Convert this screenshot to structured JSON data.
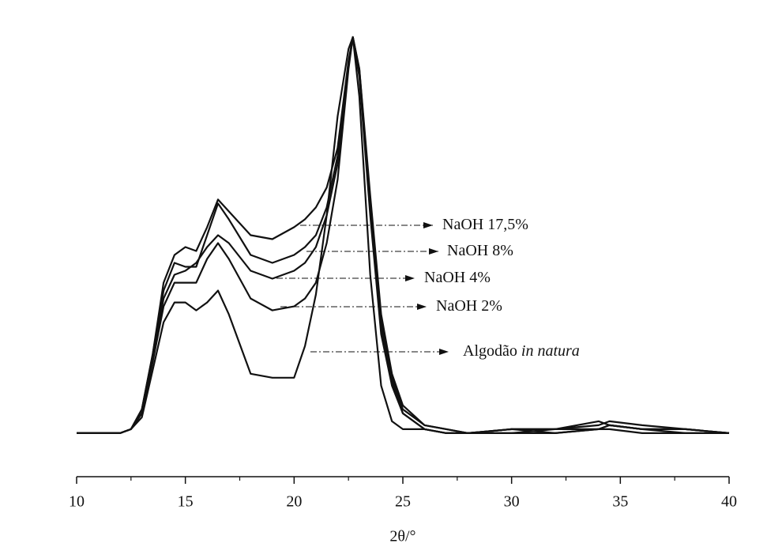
{
  "chart_data": {
    "type": "line",
    "x_label": "2θ/°",
    "x": [
      10,
      12,
      12.5,
      13,
      13.5,
      14,
      14.5,
      15,
      15.5,
      16,
      16.5,
      17,
      18,
      19,
      20,
      20.5,
      21,
      21.5,
      22,
      22.5,
      22.7,
      23,
      23.5,
      24,
      24.5,
      25,
      26,
      27,
      28,
      30,
      32,
      34,
      34.5,
      36,
      38,
      40
    ],
    "series": [
      {
        "name": "NaOH 17,5%",
        "color": "#111111",
        "values": [
          0,
          0,
          1,
          6,
          20,
          38,
          45,
          47,
          46,
          52,
          59,
          56,
          50,
          49,
          52,
          54,
          57,
          62,
          72,
          94,
          100,
          92,
          60,
          30,
          15,
          7,
          2,
          1,
          0,
          1,
          1,
          2,
          3,
          2,
          1,
          0
        ]
      },
      {
        "name": "NaOH 8%",
        "color": "#111111",
        "values": [
          0,
          0,
          1,
          6,
          20,
          36,
          43,
          42,
          42,
          50,
          58,
          54,
          45,
          43,
          45,
          47,
          50,
          57,
          70,
          93,
          100,
          92,
          58,
          28,
          14,
          6,
          2,
          1,
          0,
          1,
          1,
          3,
          2,
          1,
          0,
          0
        ]
      },
      {
        "name": "NaOH 4%",
        "color": "#111111",
        "values": [
          0,
          0,
          1,
          5,
          19,
          34,
          40,
          41,
          43,
          47,
          50,
          48,
          41,
          39,
          41,
          43,
          47,
          55,
          68,
          93,
          100,
          91,
          56,
          27,
          13,
          5,
          1,
          0,
          0,
          1,
          0,
          1,
          2,
          1,
          1,
          0
        ]
      },
      {
        "name": "NaOH 2%",
        "color": "#111111",
        "values": [
          0,
          0,
          1,
          5,
          18,
          32,
          38,
          38,
          38,
          44,
          48,
          44,
          34,
          31,
          32,
          34,
          38,
          48,
          64,
          92,
          100,
          90,
          55,
          25,
          12,
          5,
          1,
          0,
          0,
          0,
          0,
          1,
          2,
          1,
          1,
          0
        ]
      },
      {
        "name": "Algodão",
        "name_italic": "in natura",
        "color": "#111111",
        "values": [
          0,
          0,
          1,
          4,
          16,
          28,
          33,
          33,
          31,
          33,
          36,
          30,
          15,
          14,
          14,
          22,
          35,
          55,
          80,
          97,
          100,
          85,
          40,
          12,
          3,
          1,
          1,
          0,
          0,
          0,
          1,
          1,
          1,
          0,
          0,
          0
        ]
      }
    ],
    "xlim": [
      10,
      40
    ],
    "xticks": [
      10,
      15,
      20,
      25,
      30,
      35,
      40
    ],
    "xminorticks": [
      12.5,
      17.5,
      22.5,
      27.5,
      32.5,
      37.5
    ],
    "ylim": [
      -11,
      100
    ]
  }
}
